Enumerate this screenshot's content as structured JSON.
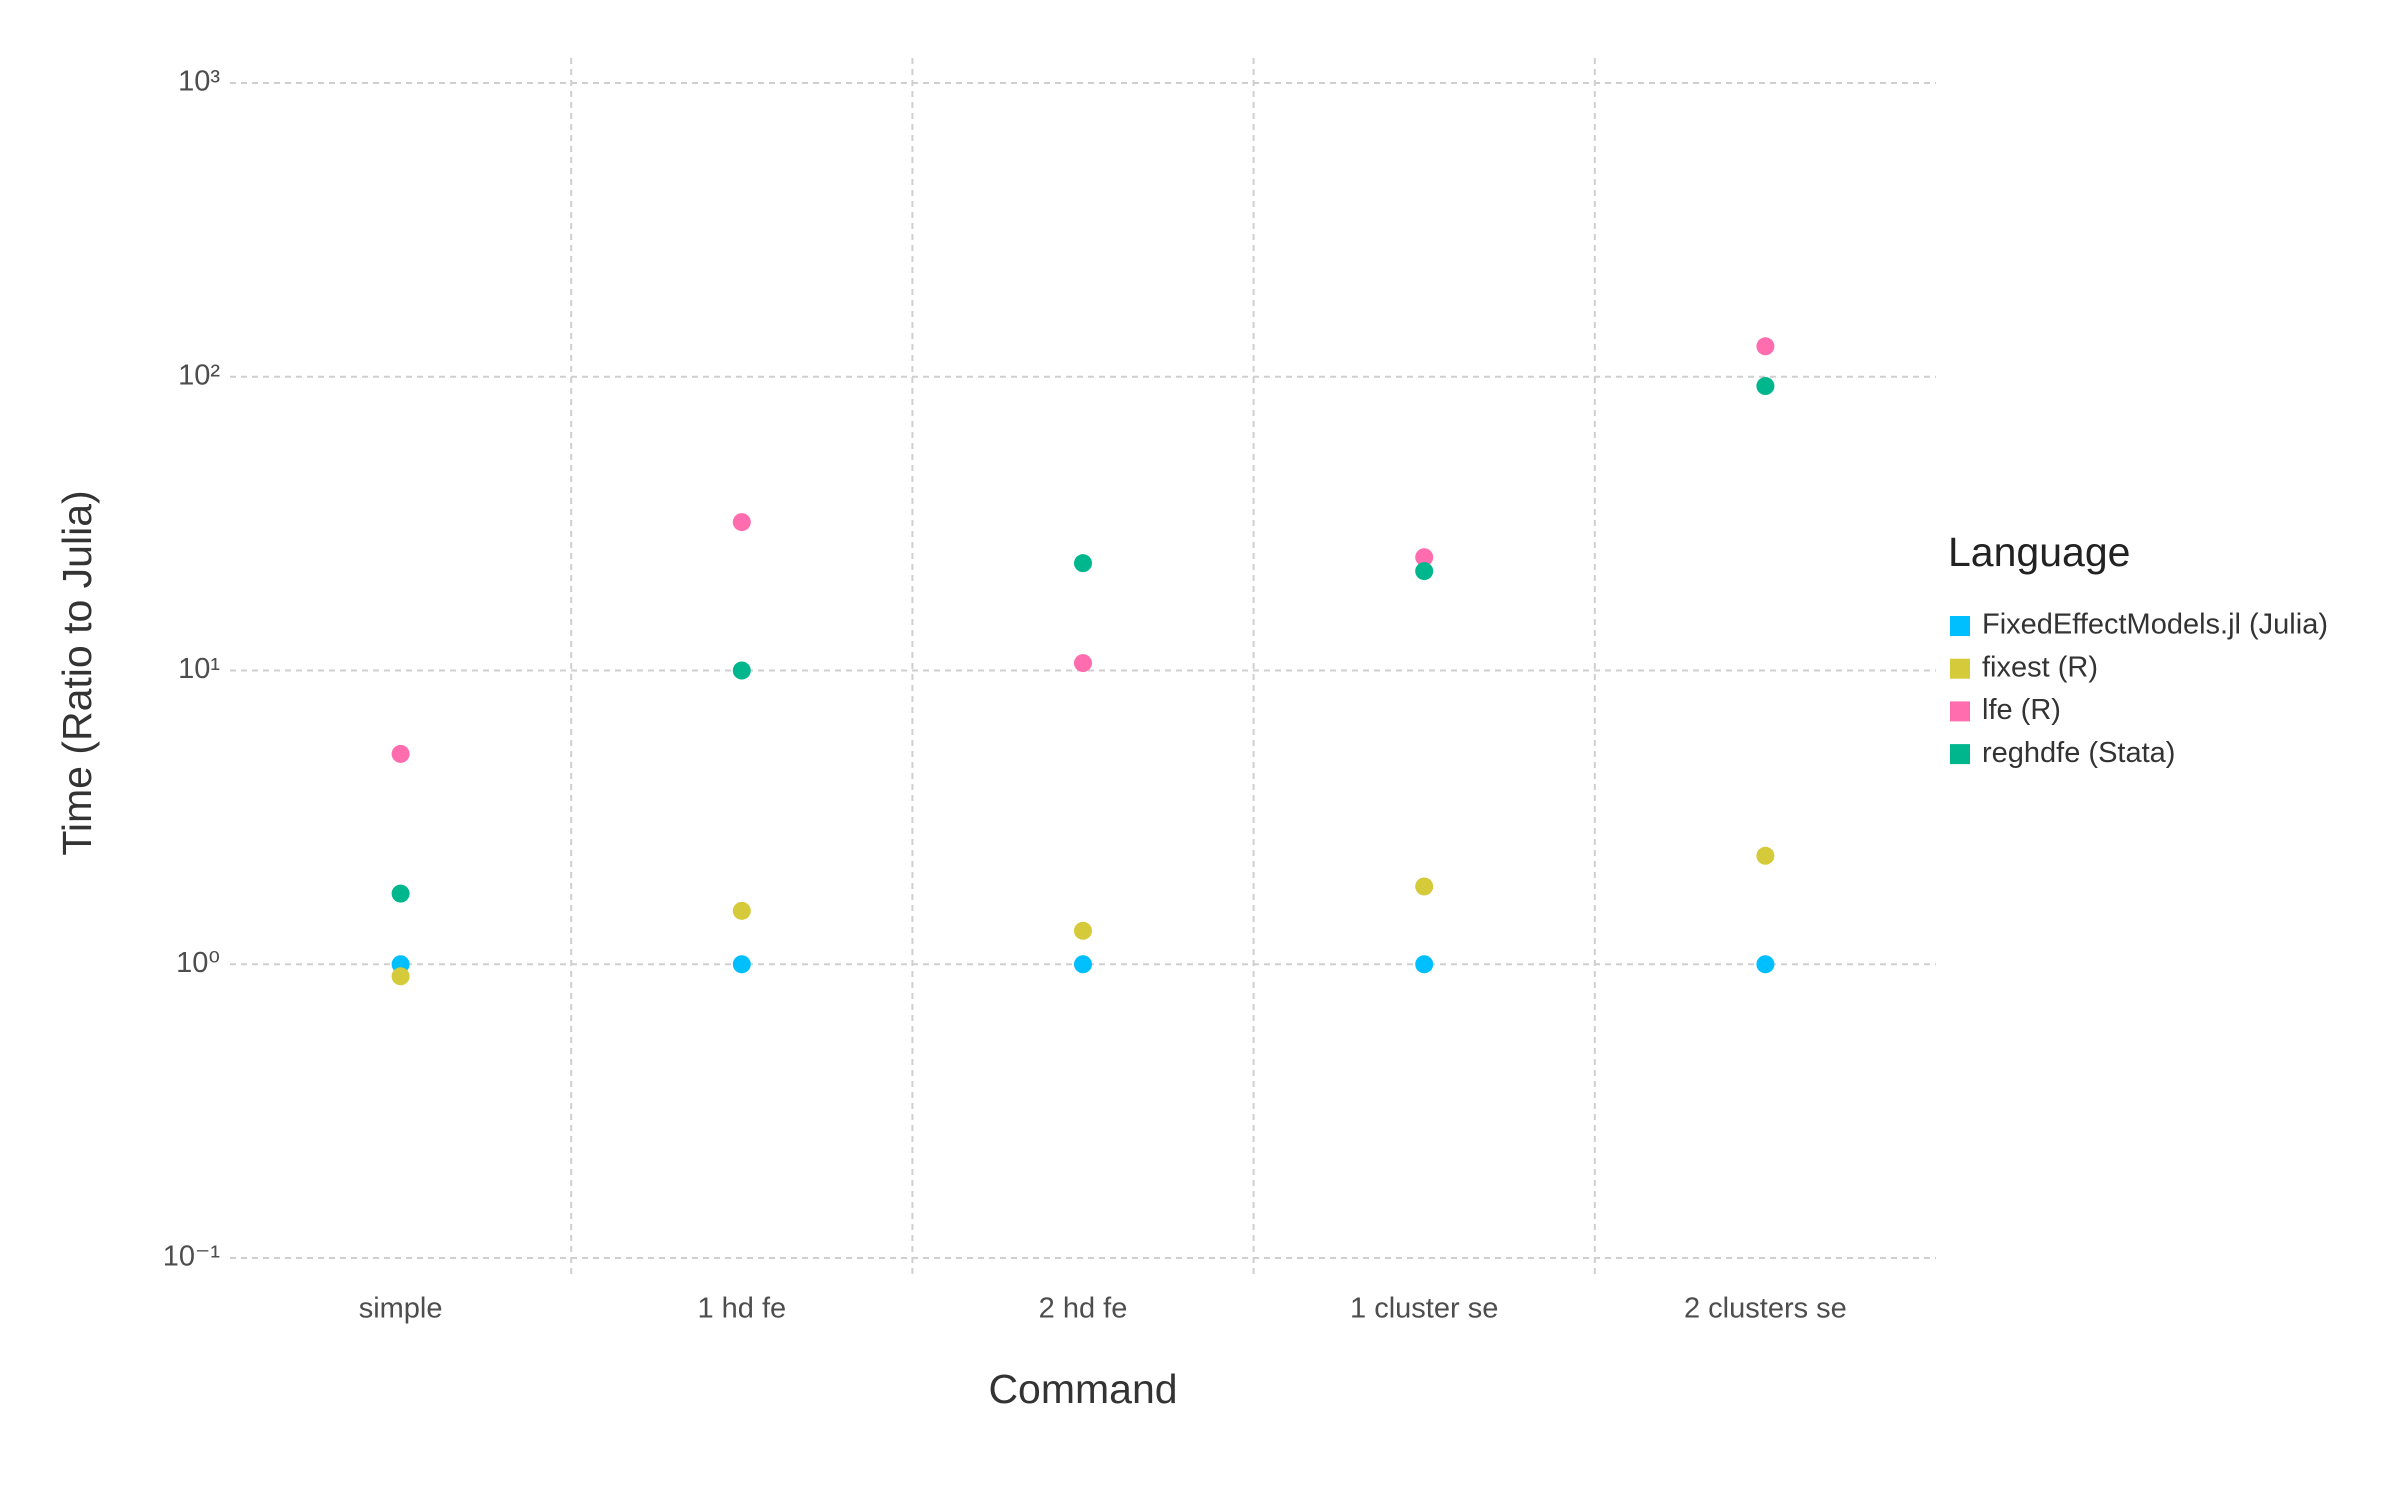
{
  "chart_data": {
    "type": "scatter",
    "x_label": "Command",
    "y_label": "Time (Ratio to Julia)",
    "categories": [
      "simple",
      "1 hd fe",
      "2 hd fe",
      "1 cluster se",
      "2 clusters se"
    ],
    "series": [
      {
        "name": "FixedEffectModels.jl (Julia)",
        "color": "#00BFFF",
        "values": [
          1,
          1,
          1,
          1,
          1
        ]
      },
      {
        "name": "fixest (R)",
        "color": "#D4CA3A",
        "values": [
          0.91,
          1.52,
          1.3,
          1.84,
          2.34
        ]
      },
      {
        "name": "lfe (R)",
        "color": "#FF6DAE",
        "values": [
          5.2,
          32,
          10.6,
          24.3,
          127
        ]
      },
      {
        "name": "reghdfe (Stata)",
        "color": "#00B78D",
        "values": [
          1.74,
          10,
          23.2,
          21.8,
          93
        ]
      }
    ],
    "ylim": [
      0.1,
      1000
    ],
    "yticks": [
      {
        "value": 0.1,
        "label": "10⁻¹"
      },
      {
        "value": 1,
        "label": "10⁰"
      },
      {
        "value": 10,
        "label": "10¹"
      },
      {
        "value": 100,
        "label": "10²"
      },
      {
        "value": 1000,
        "label": "10³"
      }
    ],
    "y_log_scale": true,
    "grid": true,
    "legend_title": "Language",
    "legend_position": "right"
  }
}
